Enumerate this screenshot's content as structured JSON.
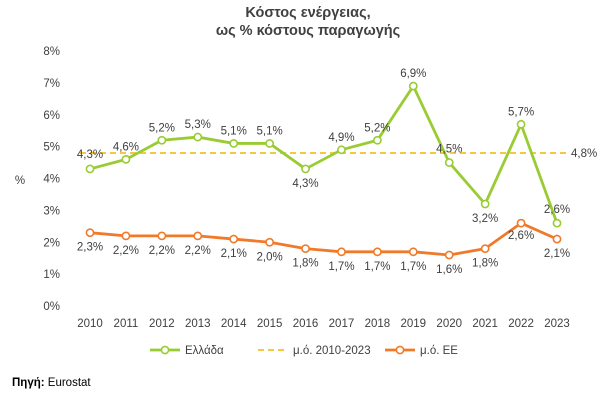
{
  "chart_data": {
    "type": "line",
    "title_lines": [
      "Κόστος ενέργειας,",
      "ως % κόστους παραγωγής"
    ],
    "xlabel": "",
    "ylabel": "%",
    "ylim": [
      0,
      8
    ],
    "y_ticks": [
      "0%",
      "1%",
      "2%",
      "3%",
      "4%",
      "5%",
      "6%",
      "7%",
      "8%"
    ],
    "categories": [
      "2010",
      "2011",
      "2012",
      "2013",
      "2014",
      "2015",
      "2016",
      "2017",
      "2018",
      "2019",
      "2020",
      "2021",
      "2022",
      "2023"
    ],
    "grid": false,
    "legend_position": "bottom",
    "series": [
      {
        "name": "Ελλάδα",
        "color": "#99cc33",
        "style": "line-marker",
        "values": [
          4.3,
          4.6,
          5.2,
          5.3,
          5.1,
          5.1,
          4.3,
          4.9,
          5.2,
          6.9,
          4.5,
          3.2,
          5.7,
          2.6
        ],
        "labels": [
          "4,3%",
          "4,6%",
          "5,2%",
          "5,3%",
          "5,1%",
          "5,1%",
          "4,3%",
          "4,9%",
          "5,2%",
          "6,9%",
          "4,5%",
          "3,2%",
          "5,7%",
          "2,6%"
        ]
      },
      {
        "name": "μ.ό. 2010-2023",
        "color": "#f5c842",
        "style": "dashed",
        "values": [
          4.8,
          4.8,
          4.8,
          4.8,
          4.8,
          4.8,
          4.8,
          4.8,
          4.8,
          4.8,
          4.8,
          4.8,
          4.8,
          4.8
        ],
        "end_label": "4,8%"
      },
      {
        "name": "μ.ό. ΕΕ",
        "color": "#f07a2a",
        "style": "line-marker",
        "values": [
          2.3,
          2.2,
          2.2,
          2.2,
          2.1,
          2.0,
          1.8,
          1.7,
          1.7,
          1.7,
          1.6,
          1.8,
          2.6,
          2.1
        ],
        "labels": [
          "2,3%",
          "2,2%",
          "2,2%",
          "2,2%",
          "2,1%",
          "2,0%",
          "1,8%",
          "1,7%",
          "1,7%",
          "1,7%",
          "1,6%",
          "1,8%",
          "2,6%",
          "2,1%"
        ]
      }
    ]
  },
  "source": {
    "label": "Πηγή:",
    "value": " Eurostat"
  }
}
